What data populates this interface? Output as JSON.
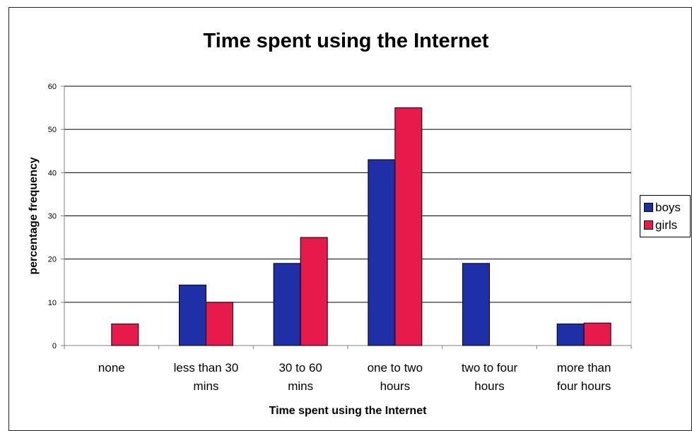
{
  "colors": {
    "boys": "#1f2fa8",
    "girls": "#e8194b",
    "gridline": "#000000",
    "axis": "#808080"
  },
  "chart_data": {
    "type": "bar",
    "title": "Time spent using the Internet",
    "xlabel": "Time spent using the Internet",
    "ylabel": "percentage frequency",
    "ylim": [
      0,
      60
    ],
    "yticks": [
      "0",
      "10",
      "20",
      "30",
      "40",
      "50",
      "60"
    ],
    "grid": true,
    "legend_position": "right",
    "categories": [
      [
        "none"
      ],
      [
        "less than 30",
        "mins"
      ],
      [
        "30 to 60",
        "mins"
      ],
      [
        "one to two",
        "hours"
      ],
      [
        "two to four",
        "hours"
      ],
      [
        "more than",
        "four hours"
      ]
    ],
    "series": [
      {
        "name": "boys",
        "values": [
          0,
          14,
          19,
          43,
          19,
          5
        ]
      },
      {
        "name": "girls",
        "values": [
          5,
          10,
          25,
          55,
          0,
          5.2
        ]
      }
    ]
  }
}
